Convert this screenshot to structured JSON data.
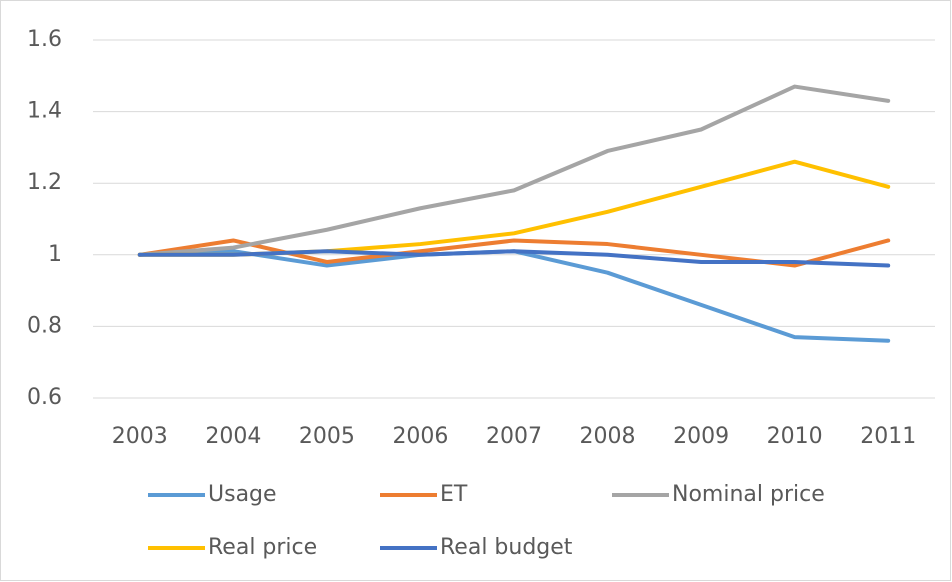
{
  "chart_data": {
    "type": "line",
    "categories": [
      "2003",
      "2004",
      "2005",
      "2006",
      "2007",
      "2008",
      "2009",
      "2010",
      "2011"
    ],
    "series": [
      {
        "name": "Usage",
        "color": "#5B9BD5",
        "values": [
          1,
          1.01,
          0.97,
          1.0,
          1.01,
          0.95,
          0.86,
          0.77,
          0.76
        ]
      },
      {
        "name": "ET",
        "color": "#ED7D31",
        "values": [
          1,
          1.04,
          0.98,
          1.01,
          1.04,
          1.03,
          1.0,
          0.97,
          1.04
        ]
      },
      {
        "name": "Nominal price",
        "color": "#A5A5A5",
        "values": [
          1,
          1.02,
          1.07,
          1.13,
          1.18,
          1.29,
          1.35,
          1.47,
          1.43
        ]
      },
      {
        "name": "Real price",
        "color": "#FFC000",
        "values": [
          1,
          1.0,
          1.01,
          1.03,
          1.06,
          1.12,
          1.19,
          1.26,
          1.19
        ]
      },
      {
        "name": "Real budget",
        "color": "#4472C4",
        "values": [
          1,
          1.0,
          1.01,
          1.0,
          1.01,
          1.0,
          0.98,
          0.98,
          0.97
        ]
      }
    ],
    "ylim": [
      0.6,
      1.6
    ],
    "yticks": [
      0.6,
      0.8,
      1,
      1.2,
      1.4,
      1.6
    ],
    "grid": true,
    "legend": "bottom"
  }
}
